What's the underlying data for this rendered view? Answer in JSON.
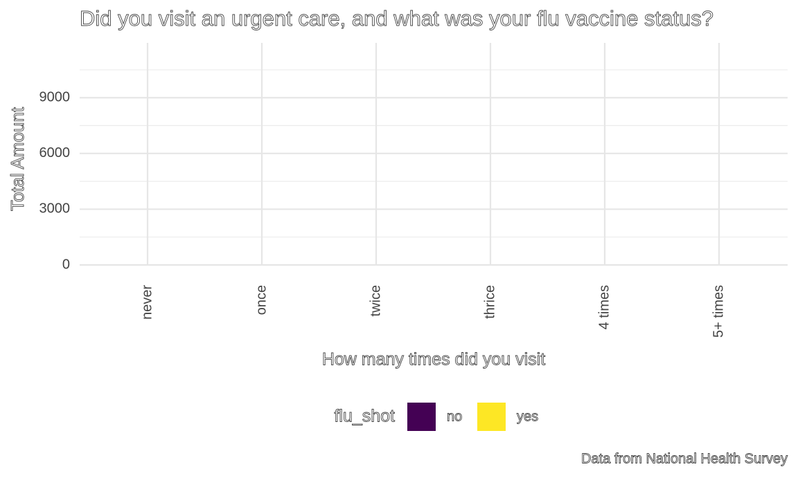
{
  "chart_data": {
    "type": "bar",
    "title": "Did you visit an urgent care, and what was your flu vaccine status?",
    "x_label": "How many times did you visit",
    "y_label": "Total Amount",
    "caption": "Data from National Health Survey",
    "legend_title": "flu_shot",
    "categories": [
      "never",
      "once",
      "twice",
      "thrice",
      "4 times",
      "5+ times"
    ],
    "series": [
      {
        "name": "no",
        "color": "#440154",
        "values": [
          null,
          null,
          null,
          null,
          null,
          null
        ]
      },
      {
        "name": "yes",
        "color": "#fde725",
        "values": [
          null,
          null,
          null,
          null,
          null,
          null
        ]
      }
    ],
    "ylim": [
      0,
      11950
    ],
    "yticks": [
      0,
      3000,
      6000,
      9000
    ],
    "minor_yticks": [
      1500,
      4500,
      7500,
      10500
    ],
    "grid": true,
    "legend": "bottom"
  }
}
